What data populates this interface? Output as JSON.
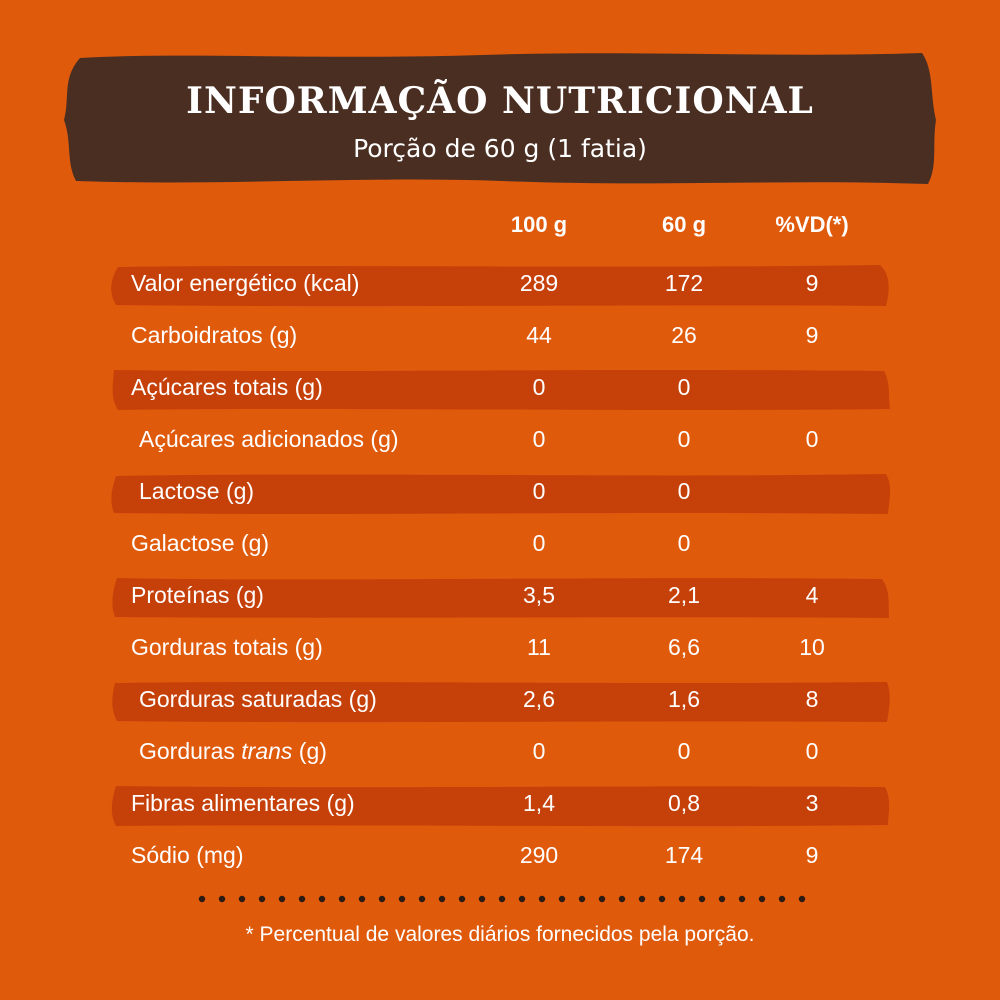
{
  "banner": {
    "title": "INFORMAÇÃO NUTRICIONAL",
    "subtitle": "Porção de 60 g (1 fatia)"
  },
  "columns": {
    "col1": "100 g",
    "col2": "60 g",
    "col3": "%VD(*)"
  },
  "rows": [
    {
      "label": "Valor energético (kcal)",
      "v1": "289",
      "v2": "172",
      "v3": "9"
    },
    {
      "label": "Carboidratos (g)",
      "v1": "44",
      "v2": "26",
      "v3": "9"
    },
    {
      "label": "Açúcares totais (g)",
      "v1": "0",
      "v2": "0",
      "v3": ""
    },
    {
      "label": "Açúcares adicionados (g)",
      "v1": "0",
      "v2": "0",
      "v3": "0"
    },
    {
      "label": "Lactose (g)",
      "v1": "0",
      "v2": "0",
      "v3": ""
    },
    {
      "label": "Galactose (g)",
      "v1": "0",
      "v2": "0",
      "v3": ""
    },
    {
      "label": "Proteínas (g)",
      "v1": "3,5",
      "v2": "2,1",
      "v3": "4"
    },
    {
      "label": "Gorduras totais (g)",
      "v1": "11",
      "v2": "6,6",
      "v3": "10"
    },
    {
      "label": "Gorduras saturadas (g)",
      "v1": "2,6",
      "v2": "1,6",
      "v3": "8"
    },
    {
      "label_prefix": "Gorduras ",
      "label_italic": "trans",
      "label_suffix": " (g)",
      "v1": "0",
      "v2": "0",
      "v3": "0"
    },
    {
      "label": "Fibras alimentares (g)",
      "v1": "1,4",
      "v2": "0,8",
      "v3": "3"
    },
    {
      "label": "Sódio (mg)",
      "v1": "290",
      "v2": "174",
      "v3": "9"
    }
  ],
  "footnote": "* Percentual de valores diários fornecidos pela porção.",
  "colors": {
    "background": "#e05a0c",
    "banner": "#4a2e22",
    "stripe": "#c6400a",
    "text": "#ffffff",
    "dots": "#2b1a12"
  }
}
